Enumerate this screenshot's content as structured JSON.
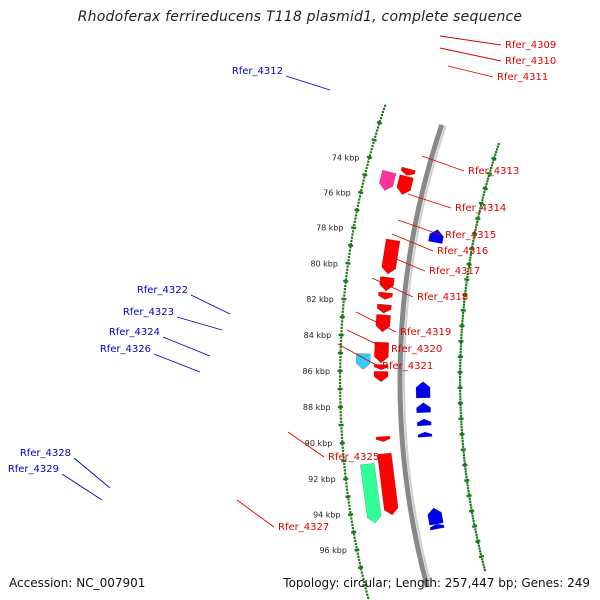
{
  "title": "Rhodoferax ferrireducens T118 plasmid1, complete sequence",
  "footer": {
    "accession": "Accession: NC_007901",
    "summary": "Topology: circular; Length: 257,447 bp; Genes: 249"
  },
  "colors": {
    "forward_gene": "#ff0000",
    "reverse_gene": "#0000ee",
    "forward_label": "#dd0000",
    "reverse_label": "#0000cc",
    "backbone": "#888888",
    "scale_dots": "#1a7a1a",
    "special_pink": "#ff3399",
    "special_cyan": "#33ccff",
    "special_green": "#33ff99"
  },
  "scale_ticks": [
    "74 kbp",
    "76 kbp",
    "78 kbp",
    "80 kbp",
    "82 kbp",
    "84 kbp",
    "86 kbp",
    "88 kbp",
    "90 kbp",
    "92 kbp",
    "94 kbp",
    "96 kbp"
  ],
  "genes_forward": [
    {
      "name": "Rfer_4309",
      "start_kbp": 74.05,
      "end_kbp": 74.45,
      "color": "#ff0000"
    },
    {
      "name": "Rfer_4310",
      "start_kbp": 74.5,
      "end_kbp": 75.6,
      "color": "#ff0000"
    },
    {
      "name": "Rfer_4311",
      "start_kbp": 74.5,
      "end_kbp": 75.6,
      "color": "#ff3399"
    },
    {
      "name": "Rfer_4313",
      "start_kbp": 78.3,
      "end_kbp": 80.3,
      "color": "#ff0000"
    },
    {
      "name": "Rfer_4314",
      "start_kbp": 80.5,
      "end_kbp": 81.3,
      "color": "#ff0000"
    },
    {
      "name": "Rfer_4315",
      "start_kbp": 81.4,
      "end_kbp": 81.8,
      "color": "#ff0000"
    },
    {
      "name": "Rfer_4316",
      "start_kbp": 82.1,
      "end_kbp": 82.6,
      "color": "#ff0000"
    },
    {
      "name": "Rfer_4317",
      "start_kbp": 82.7,
      "end_kbp": 83.7,
      "color": "#ff0000"
    },
    {
      "name": "Rfer_4318",
      "start_kbp": 84.3,
      "end_kbp": 85.5,
      "color": "#ff0000"
    },
    {
      "name": "Rfer_4319",
      "start_kbp": 85.0,
      "end_kbp": 85.9,
      "color": "#33ccff"
    },
    {
      "name": "Rfer_4320",
      "start_kbp": 85.6,
      "end_kbp": 85.9,
      "color": "#ff0000"
    },
    {
      "name": "Rfer_4321",
      "start_kbp": 86.0,
      "end_kbp": 86.6,
      "color": "#ff0000"
    },
    {
      "name": "Rfer_4325",
      "start_kbp": 89.8,
      "end_kbp": 90.1,
      "color": "#ff0000"
    },
    {
      "name": "Rfer_4327",
      "start_kbp": 90.8,
      "end_kbp": 94.4,
      "color": "#ff0000"
    },
    {
      "name": "Rfer_4327",
      "start_kbp": 91.3,
      "end_kbp": 94.7,
      "color": "#33ff99"
    }
  ],
  "genes_reverse": [
    {
      "name": "Rfer_4312",
      "start_kbp": 77.2,
      "end_kbp": 78.0
    },
    {
      "name": "Rfer_4322",
      "start_kbp": 86.6,
      "end_kbp": 87.6
    },
    {
      "name": "Rfer_4323",
      "start_kbp": 87.9,
      "end_kbp": 88.5
    },
    {
      "name": "Rfer_4324",
      "start_kbp": 88.9,
      "end_kbp": 89.3
    },
    {
      "name": "Rfer_4326",
      "start_kbp": 89.7,
      "end_kbp": 90.0
    },
    {
      "name": "Rfer_4328",
      "start_kbp": 94.4,
      "end_kbp": 95.4
    },
    {
      "name": "Rfer_4329",
      "start_kbp": 95.4,
      "end_kbp": 95.7
    }
  ],
  "labels_forward": [
    "Rfer_4309",
    "Rfer_4310",
    "Rfer_4311",
    "Rfer_4313",
    "Rfer_4314",
    "Rfer_4315",
    "Rfer_4316",
    "Rfer_4317",
    "Rfer_4318",
    "Rfer_4319",
    "Rfer_4320",
    "Rfer_4321",
    "Rfer_4325",
    "Rfer_4327"
  ],
  "labels_reverse": [
    "Rfer_4312",
    "Rfer_4322",
    "Rfer_4323",
    "Rfer_4324",
    "Rfer_4326",
    "Rfer_4328",
    "Rfer_4329"
  ]
}
